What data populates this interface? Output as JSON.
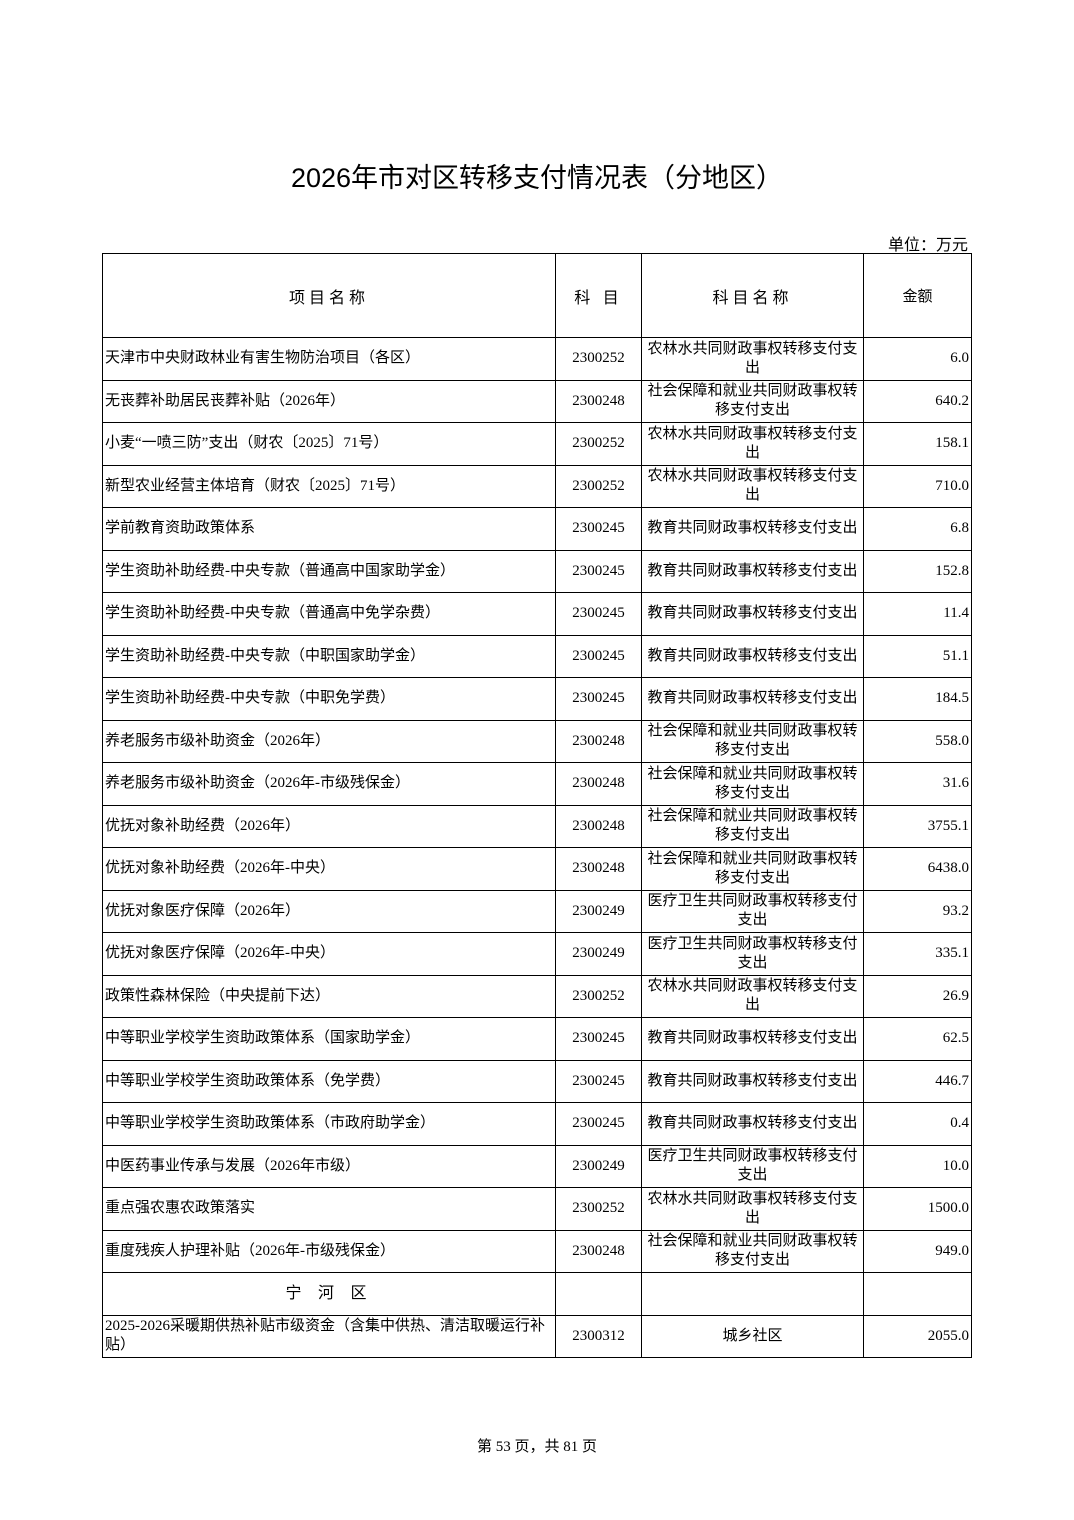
{
  "title": "2026年市对区转移支付情况表（分地区）",
  "unit": "单位：万元",
  "headers": [
    "项目名称",
    "科 目",
    "科目名称",
    "金额"
  ],
  "rows": [
    [
      "天津市中央财政林业有害生物防治项目（各区）",
      "2300252",
      "农林水共同财政事权转移支付支出",
      "6.0"
    ],
    [
      "无丧葬补助居民丧葬补贴（2026年）",
      "2300248",
      "社会保障和就业共同财政事权转移支付支出",
      "640.2"
    ],
    [
      "小麦“一喷三防”支出（财农〔2025〕71号）",
      "2300252",
      "农林水共同财政事权转移支付支出",
      "158.1"
    ],
    [
      "新型农业经营主体培育（财农〔2025〕71号）",
      "2300252",
      "农林水共同财政事权转移支付支出",
      "710.0"
    ],
    [
      "学前教育资助政策体系",
      "2300245",
      "教育共同财政事权转移支付支出",
      "6.8"
    ],
    [
      "学生资助补助经费-中央专款（普通高中国家助学金）",
      "2300245",
      "教育共同财政事权转移支付支出",
      "152.8"
    ],
    [
      "学生资助补助经费-中央专款（普通高中免学杂费）",
      "2300245",
      "教育共同财政事权转移支付支出",
      "11.4"
    ],
    [
      "学生资助补助经费-中央专款（中职国家助学金）",
      "2300245",
      "教育共同财政事权转移支付支出",
      "51.1"
    ],
    [
      "学生资助补助经费-中央专款（中职免学费）",
      "2300245",
      "教育共同财政事权转移支付支出",
      "184.5"
    ],
    [
      "养老服务市级补助资金（2026年）",
      "2300248",
      "社会保障和就业共同财政事权转移支付支出",
      "558.0"
    ],
    [
      "养老服务市级补助资金（2026年-市级残保金）",
      "2300248",
      "社会保障和就业共同财政事权转移支付支出",
      "31.6"
    ],
    [
      "优抚对象补助经费（2026年）",
      "2300248",
      "社会保障和就业共同财政事权转移支付支出",
      "3755.1"
    ],
    [
      "优抚对象补助经费（2026年-中央）",
      "2300248",
      "社会保障和就业共同财政事权转移支付支出",
      "6438.0"
    ],
    [
      "优抚对象医疗保障（2026年）",
      "2300249",
      "医疗卫生共同财政事权转移支付支出",
      "93.2"
    ],
    [
      "优抚对象医疗保障（2026年-中央）",
      "2300249",
      "医疗卫生共同财政事权转移支付支出",
      "335.1"
    ],
    [
      "政策性森林保险（中央提前下达）",
      "2300252",
      "农林水共同财政事权转移支付支出",
      "26.9"
    ],
    [
      "中等职业学校学生资助政策体系（国家助学金）",
      "2300245",
      "教育共同财政事权转移支付支出",
      "62.5"
    ],
    [
      "中等职业学校学生资助政策体系（免学费）",
      "2300245",
      "教育共同财政事权转移支付支出",
      "446.7"
    ],
    [
      "中等职业学校学生资助政策体系（市政府助学金）",
      "2300245",
      "教育共同财政事权转移支付支出",
      "0.4"
    ],
    [
      "中医药事业传承与发展（2026年市级）",
      "2300249",
      "医疗卫生共同财政事权转移支付支出",
      "10.0"
    ],
    [
      "重点强农惠农政策落实",
      "2300252",
      "农林水共同财政事权转移支付支出",
      "1500.0"
    ],
    [
      "重度残疾人护理补贴（2026年-市级残保金）",
      "2300248",
      "社会保障和就业共同财政事权转移支付支出",
      "949.0"
    ]
  ],
  "district": "宁 河 区",
  "district_rows": [
    [
      "2025-2026采暖期供热补贴市级资金（含集中供热、清洁取暖运行补贴）",
      "2300312",
      "城乡社区",
      "2055.0"
    ]
  ],
  "footer": "第 53 页，共 81 页"
}
